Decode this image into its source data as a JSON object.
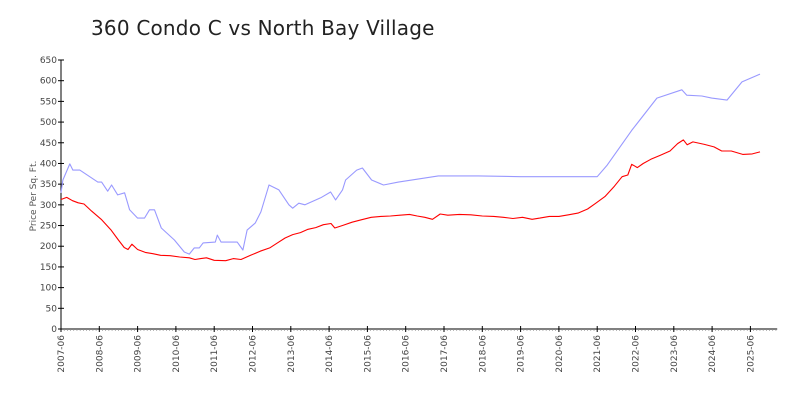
{
  "chart_data": {
    "type": "line",
    "title": "360 Condo C vs North Bay Village",
    "xlabel": "",
    "ylabel": "Price Per Sq. Ft.",
    "ylim": [
      0,
      650
    ],
    "yticks": [
      0,
      50,
      100,
      150,
      200,
      250,
      300,
      350,
      400,
      450,
      500,
      550,
      600,
      650
    ],
    "xticks": [
      "2007-06",
      "2008-06",
      "2009-06",
      "2010-06",
      "2011-06",
      "2012-06",
      "2013-06",
      "2014-06",
      "2015-06",
      "2016-06",
      "2017-06",
      "2018-06",
      "2019-06",
      "2020-06",
      "2021-06",
      "2022-06",
      "2023-06",
      "2024-06",
      "2025-06"
    ],
    "xrange": [
      2007.5,
      2026.2
    ],
    "grid": false,
    "legend": "none",
    "series": [
      {
        "name": "360 Condo C",
        "color": "#9999ff",
        "points": [
          [
            2007.5,
            329
          ],
          [
            2007.55,
            360
          ],
          [
            2007.73,
            399
          ],
          [
            2007.81,
            384
          ],
          [
            2007.99,
            384
          ],
          [
            2008.46,
            355
          ],
          [
            2008.56,
            355
          ],
          [
            2008.72,
            333
          ],
          [
            2008.82,
            348
          ],
          [
            2008.98,
            324
          ],
          [
            2009.16,
            329
          ],
          [
            2009.29,
            288
          ],
          [
            2009.5,
            268
          ],
          [
            2009.68,
            268
          ],
          [
            2009.81,
            288
          ],
          [
            2009.94,
            288
          ],
          [
            2010.12,
            244
          ],
          [
            2010.46,
            215
          ],
          [
            2010.72,
            186
          ],
          [
            2010.85,
            181
          ],
          [
            2010.98,
            196
          ],
          [
            2011.11,
            196
          ],
          [
            2011.21,
            208
          ],
          [
            2011.53,
            210
          ],
          [
            2011.58,
            227
          ],
          [
            2011.68,
            210
          ],
          [
            2012.1,
            210
          ],
          [
            2012.25,
            191
          ],
          [
            2012.36,
            239
          ],
          [
            2012.57,
            256
          ],
          [
            2012.72,
            283
          ],
          [
            2012.93,
            348
          ],
          [
            2013.19,
            336
          ],
          [
            2013.45,
            300
          ],
          [
            2013.55,
            292
          ],
          [
            2013.71,
            304
          ],
          [
            2013.87,
            300
          ],
          [
            2014.28,
            317
          ],
          [
            2014.54,
            331
          ],
          [
            2014.67,
            312
          ],
          [
            2014.85,
            336
          ],
          [
            2014.93,
            360
          ],
          [
            2015.22,
            384
          ],
          [
            2015.37,
            389
          ],
          [
            2015.61,
            360
          ],
          [
            2015.92,
            348
          ],
          [
            2016.31,
            355
          ],
          [
            2017.35,
            370
          ],
          [
            2018.4,
            370
          ],
          [
            2019.5,
            368
          ],
          [
            2020.5,
            368
          ],
          [
            2021.5,
            368
          ],
          [
            2021.76,
            396
          ],
          [
            2022.4,
            480
          ],
          [
            2023.06,
            558
          ],
          [
            2023.71,
            578
          ],
          [
            2023.84,
            565
          ],
          [
            2024.23,
            563
          ],
          [
            2024.49,
            558
          ],
          [
            2024.89,
            553
          ],
          [
            2025.28,
            597
          ],
          [
            2025.75,
            616
          ]
        ]
      },
      {
        "name": "North Bay Village",
        "color": "#ff0000",
        "points": [
          [
            2007.5,
            313
          ],
          [
            2007.65,
            318
          ],
          [
            2007.8,
            310
          ],
          [
            2007.95,
            305
          ],
          [
            2008.1,
            302
          ],
          [
            2008.3,
            285
          ],
          [
            2008.55,
            265
          ],
          [
            2008.8,
            240
          ],
          [
            2009.0,
            215
          ],
          [
            2009.15,
            197
          ],
          [
            2009.25,
            192
          ],
          [
            2009.35,
            205
          ],
          [
            2009.5,
            192
          ],
          [
            2009.7,
            185
          ],
          [
            2009.9,
            182
          ],
          [
            2010.1,
            178
          ],
          [
            2010.35,
            177
          ],
          [
            2010.6,
            174
          ],
          [
            2010.85,
            172
          ],
          [
            2011.0,
            168
          ],
          [
            2011.15,
            170
          ],
          [
            2011.3,
            172
          ],
          [
            2011.5,
            166
          ],
          [
            2011.8,
            165
          ],
          [
            2012.0,
            170
          ],
          [
            2012.2,
            168
          ],
          [
            2012.45,
            178
          ],
          [
            2012.7,
            188
          ],
          [
            2012.95,
            196
          ],
          [
            2013.15,
            208
          ],
          [
            2013.35,
            220
          ],
          [
            2013.55,
            228
          ],
          [
            2013.75,
            233
          ],
          [
            2013.95,
            241
          ],
          [
            2014.15,
            245
          ],
          [
            2014.35,
            252
          ],
          [
            2014.55,
            255
          ],
          [
            2014.65,
            244
          ],
          [
            2014.85,
            250
          ],
          [
            2015.1,
            258
          ],
          [
            2015.35,
            264
          ],
          [
            2015.6,
            270
          ],
          [
            2015.85,
            272
          ],
          [
            2016.1,
            273
          ],
          [
            2016.35,
            275
          ],
          [
            2016.6,
            277
          ],
          [
            2016.8,
            273
          ],
          [
            2017.0,
            270
          ],
          [
            2017.2,
            265
          ],
          [
            2017.4,
            278
          ],
          [
            2017.6,
            275
          ],
          [
            2017.9,
            277
          ],
          [
            2018.2,
            276
          ],
          [
            2018.5,
            273
          ],
          [
            2018.8,
            272
          ],
          [
            2019.05,
            270
          ],
          [
            2019.3,
            267
          ],
          [
            2019.55,
            270
          ],
          [
            2019.8,
            265
          ],
          [
            2020.0,
            268
          ],
          [
            2020.25,
            272
          ],
          [
            2020.5,
            272
          ],
          [
            2020.75,
            276
          ],
          [
            2021.0,
            280
          ],
          [
            2021.25,
            290
          ],
          [
            2021.45,
            303
          ],
          [
            2021.7,
            320
          ],
          [
            2021.95,
            345
          ],
          [
            2022.15,
            368
          ],
          [
            2022.3,
            372
          ],
          [
            2022.4,
            398
          ],
          [
            2022.55,
            390
          ],
          [
            2022.7,
            400
          ],
          [
            2022.9,
            410
          ],
          [
            2023.15,
            420
          ],
          [
            2023.4,
            430
          ],
          [
            2023.6,
            448
          ],
          [
            2023.75,
            457
          ],
          [
            2023.85,
            445
          ],
          [
            2024.0,
            452
          ],
          [
            2024.3,
            446
          ],
          [
            2024.55,
            440
          ],
          [
            2024.75,
            430
          ],
          [
            2025.0,
            430
          ],
          [
            2025.3,
            422
          ],
          [
            2025.55,
            423
          ],
          [
            2025.75,
            428
          ]
        ]
      }
    ]
  }
}
